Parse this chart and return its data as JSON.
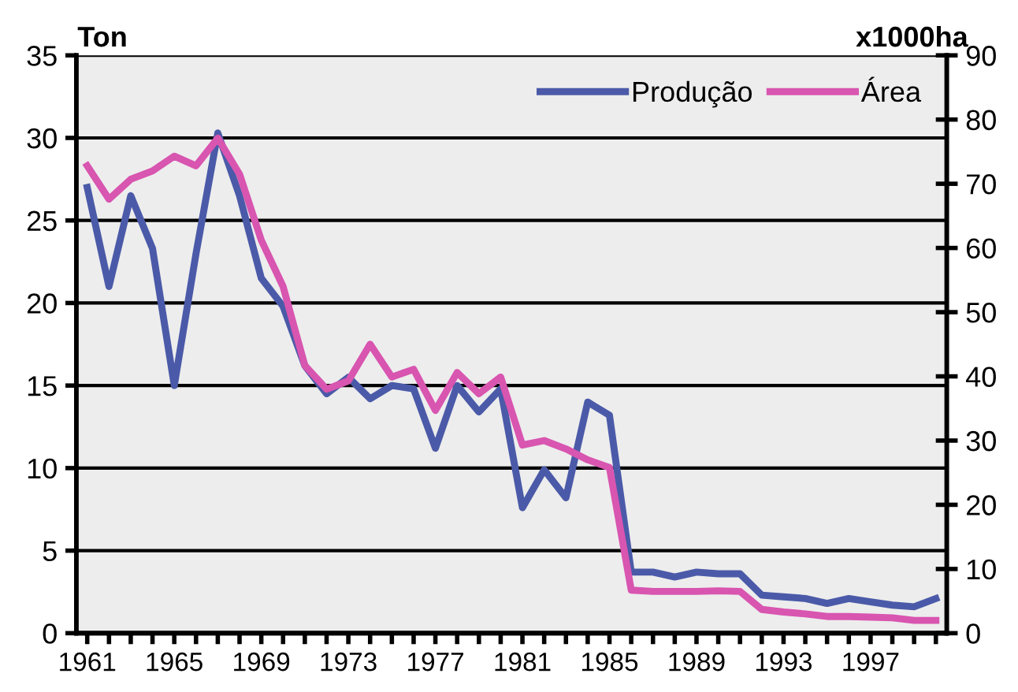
{
  "chart_data": {
    "type": "line",
    "ylabel": "Ton",
    "y2label": "x1000ha",
    "categories": [
      "1961",
      null,
      null,
      null,
      "1965",
      null,
      null,
      null,
      "1969",
      null,
      null,
      null,
      "1973",
      null,
      null,
      null,
      "1977",
      null,
      null,
      null,
      "1981",
      null,
      null,
      null,
      "1985",
      null,
      null,
      null,
      "1989",
      null,
      null,
      null,
      "1993",
      null,
      null,
      null,
      "1997",
      null,
      null,
      null
    ],
    "series": [
      {
        "name": "Produção",
        "color": "#4b5aa8",
        "values": [
          27,
          21,
          26.5,
          23.3,
          15,
          23,
          30.3,
          26.5,
          21.5,
          19.8,
          16.2,
          14.5,
          15.5,
          14.2,
          15,
          14.8,
          11.2,
          15,
          13.4,
          14.8,
          7.6,
          9.9,
          8.2,
          14,
          13.2,
          3.7,
          3.7,
          3.4,
          3.7,
          3.6,
          3.6,
          2.3,
          2.2,
          2.1,
          1.8,
          2.1,
          1.9,
          1.7,
          1.6,
          2.1
        ]
      },
      {
        "name": "Área",
        "color": "#d855b0",
        "axis": "y2",
        "values": [
          72.8,
          67.6,
          70.7,
          72,
          74.3,
          72.8,
          77.1,
          71.5,
          61.2,
          54,
          41.7,
          38,
          39.3,
          45,
          39.9,
          41.1,
          34.7,
          40.6,
          37.3,
          39.9,
          29.3,
          30,
          28.7,
          27,
          25.8,
          6.7,
          6.5,
          6.5,
          6.5,
          6.6,
          6.5,
          3.7,
          3.3,
          3,
          2.6,
          2.6,
          2.5,
          2.4,
          2,
          2
        ]
      }
    ],
    "ylim": [
      0,
      35
    ],
    "yticks": [
      0,
      5,
      10,
      15,
      20,
      25,
      30,
      35
    ],
    "y2lim": [
      0,
      90
    ],
    "y2ticks": [
      0,
      10,
      20,
      30,
      40,
      50,
      60,
      70,
      80,
      90
    ],
    "grid": "y",
    "legend": "top right",
    "marker": "none",
    "line_style": "solid"
  }
}
